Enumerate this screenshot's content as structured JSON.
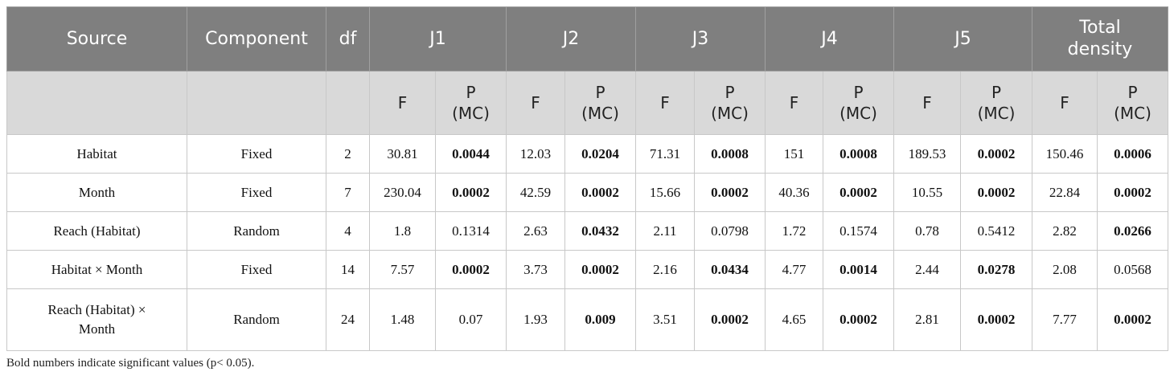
{
  "table": {
    "header": [
      "Source",
      "Component",
      "df"
    ],
    "groups": [
      "J1",
      "J2",
      "J3",
      "J4",
      "J5",
      "Total density"
    ],
    "subcolumns": [
      "F",
      "P (MC)"
    ],
    "rows": [
      {
        "source": "Habitat",
        "component": "Fixed",
        "df": "2",
        "values": [
          "30.81",
          "0.0044",
          "12.03",
          "0.0204",
          "71.31",
          "0.0008",
          "151",
          "0.0008",
          "189.53",
          "0.0002",
          "150.46",
          "0.0006"
        ],
        "bold": [
          1,
          3,
          5,
          7,
          9,
          11
        ]
      },
      {
        "source": "Month",
        "component": "Fixed",
        "df": "7",
        "values": [
          "230.04",
          "0.0002",
          "42.59",
          "0.0002",
          "15.66",
          "0.0002",
          "40.36",
          "0.0002",
          "10.55",
          "0.0002",
          "22.84",
          "0.0002"
        ],
        "bold": [
          1,
          3,
          5,
          7,
          9,
          11
        ]
      },
      {
        "source": "Reach (Habitat)",
        "component": "Random",
        "df": "4",
        "values": [
          "1.8",
          "0.1314",
          "2.63",
          "0.0432",
          "2.11",
          "0.0798",
          "1.72",
          "0.1574",
          "0.78",
          "0.5412",
          "2.82",
          "0.0266"
        ],
        "bold": [
          3,
          11
        ]
      },
      {
        "source": "Habitat × Month",
        "component": "Fixed",
        "df": "14",
        "values": [
          "7.57",
          "0.0002",
          "3.73",
          "0.0002",
          "2.16",
          "0.0434",
          "4.77",
          "0.0014",
          "2.44",
          "0.0278",
          "2.08",
          "0.0568"
        ],
        "bold": [
          1,
          3,
          5,
          7,
          9
        ]
      },
      {
        "source": "Reach (Habitat) × Month",
        "component": "Random",
        "df": "24",
        "values": [
          "1.48",
          "0.07",
          "1.93",
          "0.009",
          "3.51",
          "0.0002",
          "4.65",
          "0.0002",
          "2.81",
          "0.0002",
          "7.77",
          "0.0002"
        ],
        "bold": [
          3,
          5,
          7,
          9,
          11
        ]
      }
    ]
  },
  "footnote": "Bold numbers indicate significant values (p< 0.05)."
}
